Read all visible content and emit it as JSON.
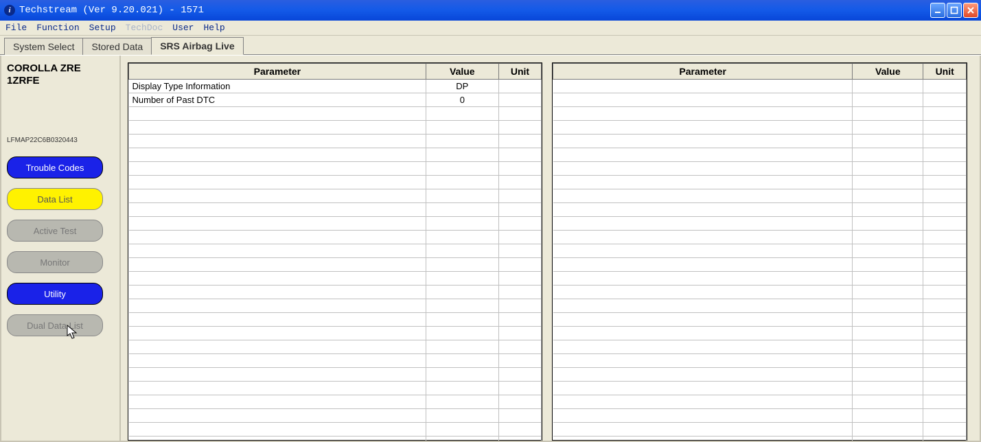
{
  "window": {
    "title": "Techstream (Ver 9.20.021) - 1571"
  },
  "menu": {
    "items": [
      "File",
      "Function",
      "Setup",
      "TechDoc",
      "User",
      "Help"
    ],
    "disabledIndex": 3
  },
  "tabs": [
    {
      "label": "System Select",
      "active": false
    },
    {
      "label": "Stored Data",
      "active": false
    },
    {
      "label": "SRS Airbag Live",
      "active": true
    }
  ],
  "sidebar": {
    "vehicle": "COROLLA ZRE 1ZRFE",
    "vin": "LFMAP22C6B0320443",
    "buttons": [
      {
        "label": "Trouble Codes",
        "style": "blue",
        "interactable": true
      },
      {
        "label": "Data List",
        "style": "yellow",
        "interactable": true
      },
      {
        "label": "Active Test",
        "style": "grey",
        "interactable": false
      },
      {
        "label": "Monitor",
        "style": "grey",
        "interactable": false
      },
      {
        "label": "Utility",
        "style": "blue",
        "interactable": true
      },
      {
        "label": "Dual Data List",
        "style": "grey",
        "interactable": false
      }
    ]
  },
  "tableHeaders": {
    "parameter": "Parameter",
    "value": "Value",
    "unit": "Unit"
  },
  "leftTable": {
    "colWidths": {
      "parameter": 432,
      "value": 106,
      "unit": 62
    },
    "rows": [
      {
        "parameter": "Display Type Information",
        "value": "DP",
        "unit": ""
      },
      {
        "parameter": "Number of Past DTC",
        "value": "0",
        "unit": ""
      }
    ],
    "emptyRows": 26
  },
  "rightTable": {
    "colWidths": {
      "parameter": 432,
      "value": 102,
      "unit": 62
    },
    "rows": [],
    "emptyRows": 28
  },
  "colors": {
    "titlebar": "#135ae8",
    "panel": "#ece9d8",
    "btnBlue": "#1a22e8",
    "btnYellow": "#fff200",
    "btnGrey": "#b8b8b0"
  }
}
